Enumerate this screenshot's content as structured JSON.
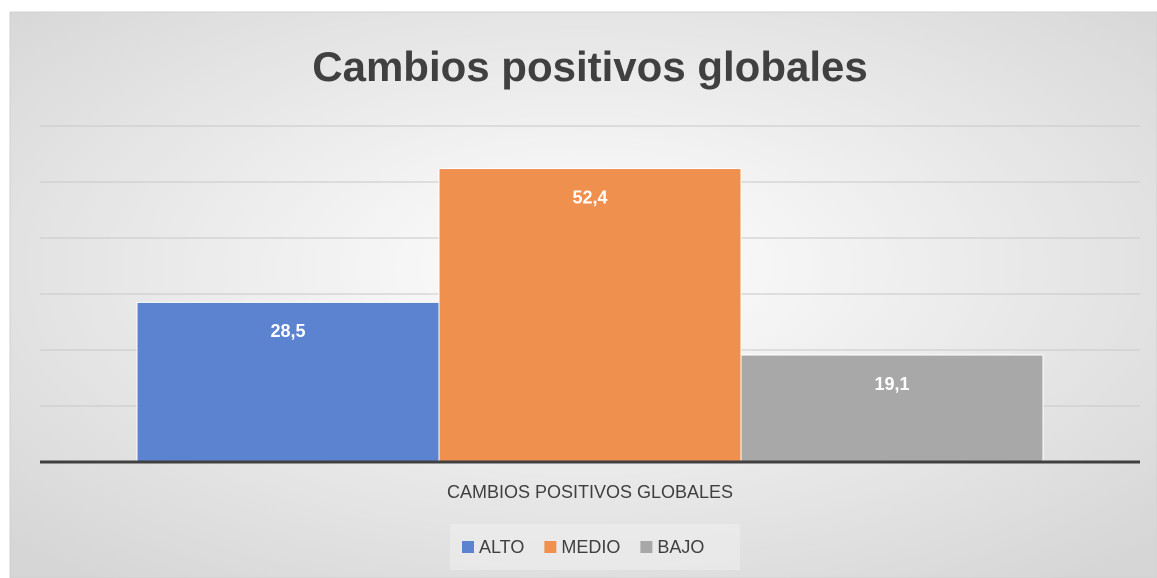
{
  "chart_data": {
    "type": "bar",
    "title": "Cambios positivos globales",
    "categories": [
      "CAMBIOS POSITIVOS GLOBALES"
    ],
    "series": [
      {
        "name": "ALTO",
        "color": "#5b83d0",
        "values": [
          28.5
        ],
        "value_labels": [
          "28,5"
        ]
      },
      {
        "name": "MEDIO",
        "color": "#ef904f",
        "values": [
          52.4
        ],
        "value_labels": [
          "52,4"
        ]
      },
      {
        "name": "BAJO",
        "color": "#a8a8a8",
        "values": [
          19.1
        ],
        "value_labels": [
          "19,1"
        ]
      }
    ],
    "ylim": [
      0,
      60
    ],
    "yticks": [
      0,
      10,
      20,
      30,
      40,
      50,
      60
    ],
    "grid": true,
    "legend": "bottom"
  }
}
